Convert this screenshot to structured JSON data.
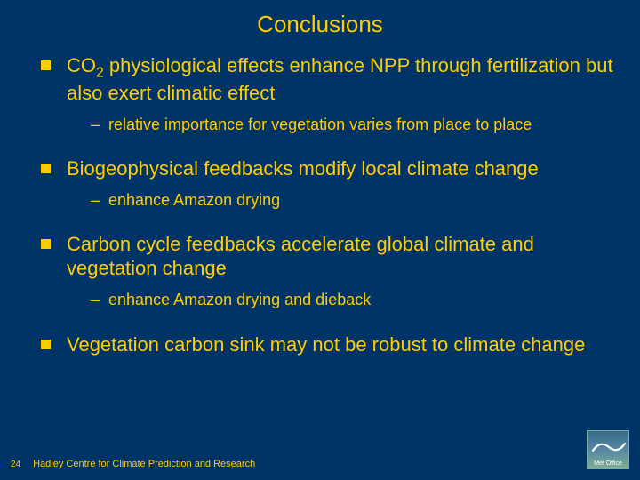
{
  "colors": {
    "background": "#003366",
    "text": "#ffcc00",
    "bullet": "#ffcc00"
  },
  "title": "Conclusions",
  "bullets": [
    {
      "text_html": "CO<sub>2</sub> physiological effects enhance NPP through fertilization but also exert climatic effect",
      "subs": [
        "relative importance for vegetation varies from place to place"
      ]
    },
    {
      "text_html": "Biogeophysical feedbacks modify local climate change",
      "subs": [
        "enhance Amazon drying"
      ]
    },
    {
      "text_html": "Carbon cycle feedbacks accelerate global climate and vegetation change",
      "subs": [
        "enhance Amazon drying and dieback"
      ]
    },
    {
      "text_html": "Vegetation carbon sink may not be robust to climate change",
      "subs": []
    }
  ],
  "footer": {
    "page_number": "24",
    "org": "Hadley Centre for Climate Prediction and Research",
    "logo_label": "Met Office"
  }
}
